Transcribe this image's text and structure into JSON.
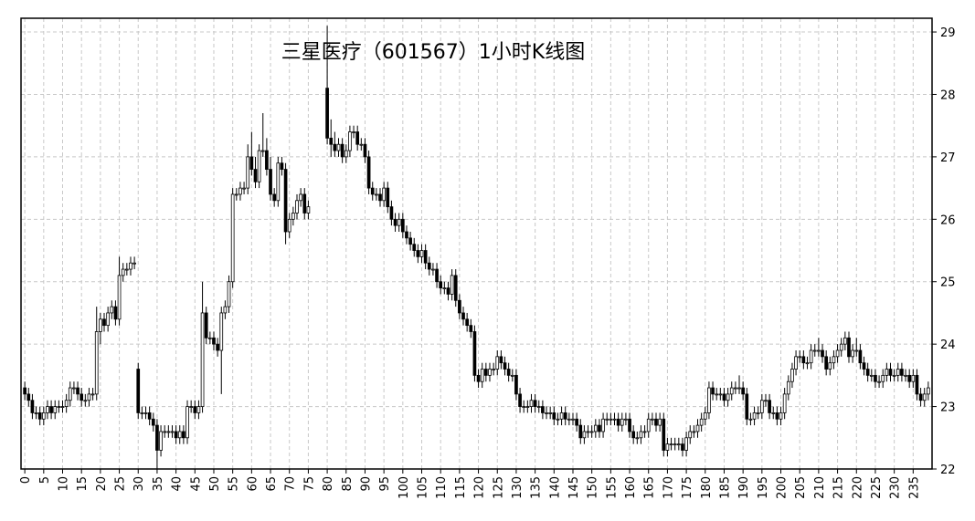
{
  "chart_data": {
    "type": "candlestick",
    "title": "三星医疗（601567）1小时K线图",
    "up_color": "#ffffff",
    "down_color": "#000000",
    "edge_color": "#000000",
    "grid": true,
    "y_axis_side": "right",
    "xlim": [
      -1,
      240
    ],
    "ylim": [
      22,
      29.22
    ],
    "xticks": [
      0,
      5,
      10,
      15,
      20,
      25,
      30,
      35,
      40,
      45,
      50,
      55,
      60,
      65,
      70,
      75,
      80,
      85,
      90,
      95,
      100,
      105,
      110,
      115,
      120,
      125,
      130,
      135,
      140,
      145,
      150,
      155,
      160,
      165,
      170,
      175,
      180,
      185,
      190,
      195,
      200,
      205,
      210,
      215,
      220,
      225,
      230,
      235
    ],
    "yticks": [
      22,
      23,
      24,
      25,
      26,
      27,
      28,
      29
    ],
    "x": [
      0,
      1,
      2,
      3,
      4,
      5,
      6,
      7,
      8,
      9,
      10,
      11,
      12,
      13,
      14,
      15,
      16,
      17,
      18,
      19,
      20,
      21,
      22,
      23,
      24,
      25,
      26,
      27,
      28,
      29,
      30,
      31,
      32,
      33,
      34,
      35,
      36,
      37,
      38,
      39,
      40,
      41,
      42,
      43,
      44,
      45,
      46,
      47,
      48,
      49,
      50,
      51,
      52,
      53,
      54,
      55,
      56,
      57,
      58,
      59,
      60,
      61,
      62,
      63,
      64,
      65,
      66,
      67,
      68,
      69,
      70,
      71,
      72,
      73,
      74,
      75,
      76,
      77,
      78,
      79,
      80,
      81,
      82,
      83,
      84,
      85,
      86,
      87,
      88,
      89,
      90,
      91,
      92,
      93,
      94,
      95,
      96,
      97,
      98,
      99,
      100,
      101,
      102,
      103,
      104,
      105,
      106,
      107,
      108,
      109,
      110,
      111,
      112,
      113,
      114,
      115,
      116,
      117,
      118,
      119,
      120,
      121,
      122,
      123,
      124,
      125,
      126,
      127,
      128,
      129,
      130,
      131,
      132,
      133,
      134,
      135,
      136,
      137,
      138,
      139,
      140,
      141,
      142,
      143,
      144,
      145,
      146,
      147,
      148,
      149,
      150,
      151,
      152,
      153,
      154,
      155,
      156,
      157,
      158,
      159,
      160,
      161,
      162,
      163,
      164,
      165,
      166,
      167,
      168,
      169,
      170,
      171,
      172,
      173,
      174,
      175,
      176,
      177,
      178,
      179,
      180,
      181,
      182,
      183,
      184,
      185,
      186,
      187,
      188,
      189,
      190,
      191,
      192,
      193,
      194,
      195,
      196,
      197,
      198,
      199,
      200,
      201,
      202,
      203,
      204,
      205,
      206,
      207,
      208,
      209,
      210,
      211,
      212,
      213,
      214,
      215,
      216,
      217,
      218,
      219,
      220,
      221,
      222,
      223,
      224,
      225,
      226,
      227,
      228,
      229,
      230,
      231,
      232,
      233,
      234,
      235,
      236,
      237,
      238,
      239
    ],
    "open": [
      23.3,
      23.2,
      23.1,
      22.9,
      22.9,
      22.8,
      22.9,
      23.0,
      22.9,
      23.0,
      23.0,
      23.0,
      23.1,
      23.3,
      23.3,
      23.2,
      23.1,
      23.1,
      23.2,
      23.2,
      24.2,
      24.4,
      24.3,
      24.5,
      24.6,
      24.4,
      25.1,
      25.2,
      25.2,
      25.3,
      23.6,
      22.9,
      22.9,
      22.9,
      22.8,
      22.7,
      22.3,
      22.6,
      22.6,
      22.6,
      22.6,
      22.5,
      22.6,
      22.5,
      23.0,
      23.0,
      22.9,
      23.0,
      24.5,
      24.1,
      24.1,
      24.0,
      23.9,
      24.5,
      24.6,
      25.0,
      26.4,
      26.4,
      26.5,
      26.5,
      27.0,
      26.8,
      26.6,
      27.1,
      27.1,
      26.8,
      26.4,
      26.3,
      26.9,
      26.8,
      25.8,
      26.0,
      26.1,
      26.3,
      26.4,
      26.1,
      null,
      null,
      null,
      null,
      28.1,
      27.3,
      27.2,
      27.1,
      27.2,
      27.0,
      27.1,
      27.4,
      27.4,
      27.2,
      27.2,
      27.0,
      26.5,
      26.4,
      26.4,
      26.3,
      26.5,
      26.2,
      26.0,
      25.9,
      26.0,
      25.8,
      25.7,
      25.6,
      25.5,
      25.4,
      25.5,
      25.3,
      25.2,
      25.2,
      25.0,
      24.9,
      24.9,
      24.8,
      25.1,
      24.7,
      24.5,
      24.4,
      24.3,
      24.2,
      23.5,
      23.4,
      23.6,
      23.5,
      23.6,
      23.6,
      23.8,
      23.7,
      23.6,
      23.5,
      23.5,
      23.2,
      23.0,
      23.0,
      23.0,
      23.1,
      23.0,
      23.0,
      22.9,
      22.9,
      22.9,
      22.8,
      22.8,
      22.9,
      22.8,
      22.8,
      22.8,
      22.7,
      22.5,
      22.6,
      22.6,
      22.6,
      22.7,
      22.6,
      22.8,
      22.8,
      22.8,
      22.8,
      22.7,
      22.8,
      22.8,
      22.6,
      22.5,
      22.5,
      22.6,
      22.6,
      22.8,
      22.8,
      22.7,
      22.8,
      22.3,
      22.4,
      22.4,
      22.4,
      22.4,
      22.3,
      22.5,
      22.6,
      22.6,
      22.7,
      22.8,
      22.9,
      23.3,
      23.2,
      23.2,
      23.2,
      23.1,
      23.2,
      23.3,
      23.3,
      23.3,
      23.2,
      22.8,
      22.8,
      22.9,
      22.9,
      23.1,
      23.1,
      22.9,
      22.9,
      22.8,
      22.9,
      23.2,
      23.4,
      23.6,
      23.8,
      23.8,
      23.7,
      23.7,
      23.9,
      23.9,
      23.9,
      23.8,
      23.6,
      23.7,
      23.8,
      23.9,
      24.0,
      24.1,
      23.8,
      23.9,
      23.9,
      23.7,
      23.6,
      23.5,
      23.5,
      23.4,
      23.4,
      23.5,
      23.6,
      23.5,
      23.5,
      23.6,
      23.5,
      23.5,
      23.4,
      23.5,
      23.2,
      23.1,
      23.2
    ],
    "high": [
      23.4,
      23.3,
      23.2,
      23.0,
      23.0,
      23.0,
      23.1,
      23.1,
      23.1,
      23.1,
      23.1,
      23.2,
      23.4,
      23.4,
      23.4,
      23.3,
      23.2,
      23.3,
      23.3,
      24.6,
      24.5,
      24.5,
      24.6,
      24.7,
      24.7,
      25.4,
      25.3,
      25.3,
      25.4,
      25.4,
      23.7,
      23.0,
      23.0,
      23.0,
      22.9,
      22.8,
      22.7,
      22.7,
      22.7,
      22.7,
      22.7,
      22.7,
      22.7,
      23.1,
      23.1,
      23.1,
      23.1,
      25.0,
      24.6,
      24.2,
      24.2,
      24.1,
      24.6,
      24.7,
      25.1,
      26.5,
      26.5,
      26.6,
      26.6,
      27.2,
      27.4,
      27.0,
      27.2,
      27.7,
      27.3,
      27.0,
      26.5,
      27.0,
      27.0,
      26.9,
      26.1,
      26.2,
      26.4,
      26.5,
      26.5,
      26.3,
      null,
      null,
      null,
      null,
      29.1,
      27.6,
      27.4,
      27.3,
      27.3,
      27.2,
      27.5,
      27.5,
      27.5,
      27.3,
      27.3,
      27.1,
      26.6,
      26.5,
      26.5,
      26.6,
      26.6,
      26.3,
      26.1,
      26.1,
      26.1,
      25.9,
      25.8,
      25.7,
      25.6,
      25.6,
      25.6,
      25.4,
      25.3,
      25.3,
      25.1,
      25.0,
      25.0,
      25.2,
      25.2,
      24.8,
      24.6,
      24.5,
      24.4,
      24.3,
      23.6,
      23.7,
      23.7,
      23.7,
      23.7,
      23.9,
      23.9,
      23.8,
      23.7,
      23.6,
      23.6,
      23.3,
      23.1,
      23.1,
      23.2,
      23.2,
      23.1,
      23.1,
      23.0,
      23.0,
      23.0,
      22.9,
      23.0,
      23.0,
      22.9,
      22.9,
      22.9,
      22.8,
      22.7,
      22.7,
      22.7,
      22.8,
      22.8,
      22.9,
      22.9,
      22.9,
      22.9,
      22.9,
      22.9,
      22.9,
      22.9,
      22.7,
      22.6,
      22.7,
      22.7,
      22.9,
      22.9,
      22.9,
      22.9,
      22.9,
      22.5,
      22.5,
      22.5,
      22.5,
      22.5,
      22.6,
      22.7,
      22.7,
      22.8,
      22.9,
      23.0,
      23.4,
      23.4,
      23.3,
      23.3,
      23.3,
      23.3,
      23.4,
      23.4,
      23.5,
      23.4,
      23.3,
      22.9,
      23.0,
      23.0,
      23.2,
      23.2,
      23.2,
      23.0,
      23.0,
      23.0,
      23.3,
      23.5,
      23.7,
      23.9,
      23.9,
      23.9,
      23.8,
      24.0,
      24.0,
      24.1,
      24.0,
      23.9,
      23.8,
      23.9,
      24.0,
      24.1,
      24.2,
      24.2,
      24.0,
      24.1,
      24.0,
      23.8,
      23.7,
      23.6,
      23.6,
      23.5,
      23.6,
      23.7,
      23.7,
      23.6,
      23.7,
      23.7,
      23.6,
      23.6,
      23.6,
      23.6,
      23.3,
      23.3,
      23.4
    ],
    "low": [
      23.1,
      23.0,
      22.8,
      22.8,
      22.7,
      22.7,
      22.8,
      22.8,
      22.8,
      22.9,
      22.9,
      22.9,
      23.0,
      23.2,
      23.1,
      23.0,
      23.0,
      23.0,
      23.1,
      23.1,
      24.0,
      24.2,
      24.2,
      24.4,
      24.3,
      24.3,
      25.0,
      25.1,
      25.1,
      25.2,
      22.8,
      22.8,
      22.8,
      22.7,
      22.6,
      22.0,
      22.2,
      22.5,
      22.5,
      22.5,
      22.4,
      22.4,
      22.4,
      22.4,
      22.9,
      22.8,
      22.8,
      22.9,
      24.0,
      24.0,
      23.9,
      23.8,
      23.2,
      24.4,
      24.5,
      24.9,
      26.3,
      26.3,
      26.4,
      26.4,
      26.7,
      26.5,
      26.5,
      27.0,
      26.7,
      26.3,
      26.2,
      26.2,
      26.7,
      25.6,
      25.7,
      25.9,
      26.0,
      26.2,
      26.0,
      26.0,
      null,
      null,
      null,
      null,
      27.2,
      27.0,
      27.0,
      27.0,
      26.9,
      26.9,
      27.0,
      27.3,
      27.1,
      27.1,
      26.9,
      26.4,
      26.3,
      26.3,
      26.2,
      26.2,
      26.1,
      25.9,
      25.8,
      25.8,
      25.7,
      25.6,
      25.5,
      25.4,
      25.3,
      25.3,
      25.2,
      25.1,
      25.1,
      24.9,
      24.8,
      24.8,
      24.7,
      24.7,
      24.6,
      24.4,
      24.3,
      24.2,
      24.1,
      23.4,
      23.3,
      23.3,
      23.4,
      23.4,
      23.5,
      23.5,
      23.6,
      23.5,
      23.4,
      23.4,
      23.1,
      22.9,
      22.9,
      22.9,
      22.9,
      22.9,
      22.9,
      22.8,
      22.8,
      22.8,
      22.7,
      22.7,
      22.7,
      22.7,
      22.7,
      22.7,
      22.6,
      22.4,
      22.4,
      22.5,
      22.5,
      22.5,
      22.5,
      22.5,
      22.7,
      22.7,
      22.7,
      22.6,
      22.6,
      22.7,
      22.5,
      22.4,
      22.4,
      22.4,
      22.5,
      22.5,
      22.7,
      22.6,
      22.6,
      22.2,
      22.2,
      22.3,
      22.3,
      22.3,
      22.2,
      22.2,
      22.4,
      22.5,
      22.5,
      22.6,
      22.7,
      22.8,
      23.1,
      23.1,
      23.1,
      23.0,
      23.0,
      23.1,
      23.2,
      23.2,
      23.1,
      22.7,
      22.7,
      22.7,
      22.8,
      22.8,
      23.0,
      22.8,
      22.8,
      22.7,
      22.7,
      22.8,
      23.1,
      23.3,
      23.5,
      23.7,
      23.6,
      23.6,
      23.6,
      23.8,
      23.8,
      23.7,
      23.5,
      23.5,
      23.6,
      23.7,
      23.8,
      23.9,
      23.7,
      23.7,
      23.8,
      23.6,
      23.5,
      23.4,
      23.4,
      23.3,
      23.3,
      23.3,
      23.4,
      23.4,
      23.4,
      23.4,
      23.4,
      23.4,
      23.3,
      23.3,
      23.1,
      23.0,
      23.0,
      23.1
    ],
    "close": [
      23.2,
      23.1,
      22.9,
      22.9,
      22.8,
      22.9,
      23.0,
      22.9,
      23.0,
      23.0,
      23.0,
      23.1,
      23.3,
      23.3,
      23.2,
      23.1,
      23.1,
      23.2,
      23.2,
      24.2,
      24.4,
      24.3,
      24.5,
      24.6,
      24.4,
      25.1,
      25.2,
      25.2,
      25.3,
      25.3,
      22.9,
      22.9,
      22.9,
      22.8,
      22.7,
      22.3,
      22.6,
      22.6,
      22.6,
      22.6,
      22.5,
      22.6,
      22.5,
      23.0,
      23.0,
      22.9,
      23.0,
      24.5,
      24.1,
      24.1,
      24.0,
      23.9,
      24.5,
      24.6,
      25.0,
      26.4,
      26.4,
      26.5,
      26.5,
      27.0,
      26.8,
      26.6,
      27.1,
      27.1,
      26.8,
      26.4,
      26.3,
      26.9,
      26.8,
      25.8,
      26.0,
      26.1,
      26.3,
      26.4,
      26.1,
      26.2,
      null,
      null,
      null,
      null,
      27.3,
      27.2,
      27.1,
      27.2,
      27.0,
      27.1,
      27.4,
      27.4,
      27.2,
      27.2,
      27.0,
      26.5,
      26.4,
      26.4,
      26.3,
      26.5,
      26.2,
      26.0,
      25.9,
      26.0,
      25.8,
      25.7,
      25.6,
      25.5,
      25.4,
      25.5,
      25.3,
      25.2,
      25.2,
      25.0,
      24.9,
      24.9,
      24.8,
      25.1,
      24.7,
      24.5,
      24.4,
      24.3,
      24.2,
      23.5,
      23.4,
      23.6,
      23.5,
      23.6,
      23.6,
      23.8,
      23.7,
      23.6,
      23.5,
      23.5,
      23.2,
      23.0,
      23.0,
      23.0,
      23.1,
      23.0,
      23.0,
      22.9,
      22.9,
      22.9,
      22.8,
      22.8,
      22.9,
      22.8,
      22.8,
      22.8,
      22.7,
      22.5,
      22.6,
      22.6,
      22.6,
      22.7,
      22.6,
      22.8,
      22.8,
      22.8,
      22.8,
      22.7,
      22.8,
      22.8,
      22.6,
      22.5,
      22.5,
      22.6,
      22.6,
      22.8,
      22.8,
      22.7,
      22.8,
      22.3,
      22.4,
      22.4,
      22.4,
      22.4,
      22.3,
      22.5,
      22.6,
      22.6,
      22.7,
      22.8,
      22.9,
      23.3,
      23.2,
      23.2,
      23.2,
      23.1,
      23.2,
      23.3,
      23.3,
      23.3,
      23.2,
      22.8,
      22.8,
      22.9,
      22.9,
      23.1,
      23.1,
      22.9,
      22.9,
      22.8,
      22.9,
      23.2,
      23.4,
      23.6,
      23.8,
      23.8,
      23.7,
      23.7,
      23.9,
      23.9,
      23.9,
      23.8,
      23.6,
      23.7,
      23.8,
      23.9,
      24.0,
      24.1,
      23.8,
      23.9,
      23.9,
      23.7,
      23.6,
      23.5,
      23.5,
      23.4,
      23.4,
      23.5,
      23.6,
      23.5,
      23.5,
      23.6,
      23.5,
      23.5,
      23.4,
      23.5,
      23.2,
      23.1,
      23.2,
      23.3
    ]
  }
}
